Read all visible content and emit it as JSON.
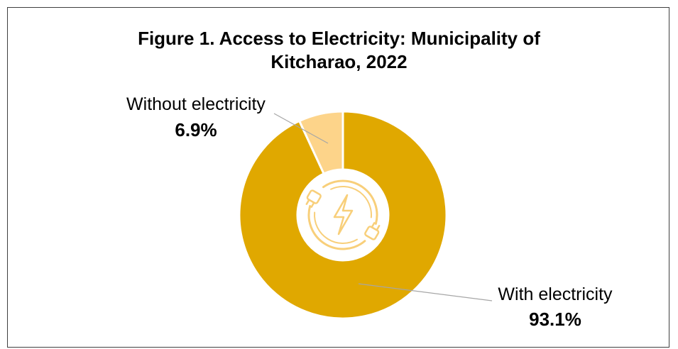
{
  "chart_data": {
    "type": "pie",
    "title_line1": "Figure 1. Access to Electricity: Municipality of",
    "title_line2": "Kitcharao, 2022",
    "slices": [
      {
        "label": "With electricity",
        "value": 93.1,
        "display": "93.1%",
        "color": "#E0A800"
      },
      {
        "label": "Without electricity",
        "value": 6.9,
        "display": "6.9%",
        "color": "#FDD48A"
      }
    ],
    "hole": true,
    "center_icon": "electricity-plug-icon",
    "icon_color": "#F8CF7A",
    "leader_line_color": "#A6A6A6"
  }
}
